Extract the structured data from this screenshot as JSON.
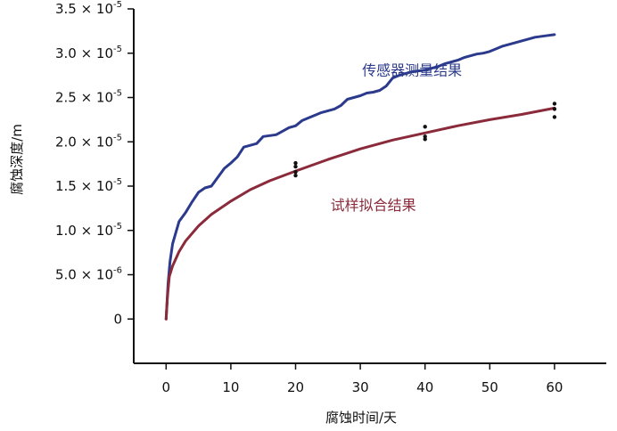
{
  "chart_data": {
    "type": "line",
    "title": "",
    "xlabel": "腐蚀时间/天",
    "ylabel": "腐蚀深度/m",
    "xlim": [
      -5,
      68
    ],
    "ylim": [
      -5e-06,
      3.5e-05
    ],
    "x_ticks": [
      0,
      10,
      20,
      30,
      40,
      50,
      60
    ],
    "x_tick_labels": [
      "0",
      "10",
      "20",
      "30",
      "40",
      "50",
      "60"
    ],
    "y_ticks": [
      {
        "value": 0,
        "mantissa": "0",
        "exp": ""
      },
      {
        "value": 5e-06,
        "mantissa": "5.0 × 10",
        "exp": "-6"
      },
      {
        "value": 1e-05,
        "mantissa": "1.0 × 10",
        "exp": "-5"
      },
      {
        "value": 1.5e-05,
        "mantissa": "1.5 × 10",
        "exp": "-5"
      },
      {
        "value": 2e-05,
        "mantissa": "2.0 × 10",
        "exp": "-5"
      },
      {
        "value": 2.5e-05,
        "mantissa": "2.5 × 10",
        "exp": "-5"
      },
      {
        "value": 3e-05,
        "mantissa": "3.0 × 10",
        "exp": "-5"
      },
      {
        "value": 3.5e-05,
        "mantissa": "3.5 × 10",
        "exp": "-5"
      }
    ],
    "grid": false,
    "series": [
      {
        "name": "传感器测量结果",
        "color": "#2b3a8c",
        "style": "line",
        "points": [
          [
            0,
            0
          ],
          [
            0.3,
            4e-06
          ],
          [
            0.6,
            6.5e-06
          ],
          [
            1,
            8.5e-06
          ],
          [
            2,
            1.1e-05
          ],
          [
            3,
            1.2e-05
          ],
          [
            4,
            1.32e-05
          ],
          [
            5,
            1.43e-05
          ],
          [
            6,
            1.48e-05
          ],
          [
            7,
            1.5e-05
          ],
          [
            8,
            1.6e-05
          ],
          [
            9,
            1.7e-05
          ],
          [
            10,
            1.76e-05
          ],
          [
            11,
            1.83e-05
          ],
          [
            12,
            1.94e-05
          ],
          [
            13,
            1.96e-05
          ],
          [
            14,
            1.98e-05
          ],
          [
            15,
            2.06e-05
          ],
          [
            16,
            2.07e-05
          ],
          [
            17,
            2.08e-05
          ],
          [
            18,
            2.12e-05
          ],
          [
            19,
            2.16e-05
          ],
          [
            20,
            2.18e-05
          ],
          [
            21,
            2.24e-05
          ],
          [
            22,
            2.27e-05
          ],
          [
            23,
            2.3e-05
          ],
          [
            24,
            2.33e-05
          ],
          [
            25,
            2.35e-05
          ],
          [
            26,
            2.37e-05
          ],
          [
            27,
            2.41e-05
          ],
          [
            28,
            2.48e-05
          ],
          [
            29,
            2.5e-05
          ],
          [
            30,
            2.52e-05
          ],
          [
            31,
            2.55e-05
          ],
          [
            32,
            2.56e-05
          ],
          [
            33,
            2.58e-05
          ],
          [
            34,
            2.63e-05
          ],
          [
            35,
            2.72e-05
          ],
          [
            36,
            2.75e-05
          ],
          [
            37,
            2.77e-05
          ],
          [
            38,
            2.79e-05
          ],
          [
            39,
            2.8e-05
          ],
          [
            40,
            2.81e-05
          ],
          [
            41,
            2.83e-05
          ],
          [
            42,
            2.85e-05
          ],
          [
            43,
            2.88e-05
          ],
          [
            44,
            2.9e-05
          ],
          [
            45,
            2.92e-05
          ],
          [
            46,
            2.95e-05
          ],
          [
            47,
            2.97e-05
          ],
          [
            48,
            2.99e-05
          ],
          [
            49,
            3e-05
          ],
          [
            50,
            3.02e-05
          ],
          [
            51,
            3.05e-05
          ],
          [
            52,
            3.08e-05
          ],
          [
            53,
            3.1e-05
          ],
          [
            54,
            3.12e-05
          ],
          [
            55,
            3.14e-05
          ],
          [
            56,
            3.16e-05
          ],
          [
            57,
            3.18e-05
          ],
          [
            58,
            3.19e-05
          ],
          [
            59,
            3.2e-05
          ],
          [
            60,
            3.21e-05
          ]
        ]
      },
      {
        "name": "试样拟合结果",
        "color": "#8b2a3a",
        "style": "line",
        "points": [
          [
            0,
            0
          ],
          [
            0.2,
            2.5e-06
          ],
          [
            0.5,
            4.8e-06
          ],
          [
            1,
            6e-06
          ],
          [
            2,
            7.6e-06
          ],
          [
            3,
            8.8e-06
          ],
          [
            5,
            1.05e-05
          ],
          [
            7,
            1.18e-05
          ],
          [
            10,
            1.33e-05
          ],
          [
            13,
            1.46e-05
          ],
          [
            16,
            1.56e-05
          ],
          [
            20,
            1.67e-05
          ],
          [
            25,
            1.8e-05
          ],
          [
            30,
            1.92e-05
          ],
          [
            35,
            2.02e-05
          ],
          [
            40,
            2.1e-05
          ],
          [
            45,
            2.18e-05
          ],
          [
            50,
            2.25e-05
          ],
          [
            55,
            2.31e-05
          ],
          [
            60,
            2.38e-05
          ]
        ]
      },
      {
        "name": "",
        "color": "#111111",
        "style": "scatter",
        "points": [
          [
            20,
            1.76e-05
          ],
          [
            20,
            1.72e-05
          ],
          [
            20,
            1.66e-05
          ],
          [
            20,
            1.62e-05
          ],
          [
            40,
            2.17e-05
          ],
          [
            40,
            2.06e-05
          ],
          [
            40,
            2.03e-05
          ],
          [
            60,
            2.43e-05
          ],
          [
            60,
            2.37e-05
          ],
          [
            60,
            2.28e-05
          ]
        ]
      }
    ],
    "annotations": [
      {
        "text": "传感器测量结果",
        "x": 38,
        "y": 2.75e-05,
        "color": "#2b3a8c"
      },
      {
        "text": "试样拟合结果",
        "x": 32,
        "y": 1.23e-05,
        "color": "#8b2a3a"
      }
    ]
  }
}
